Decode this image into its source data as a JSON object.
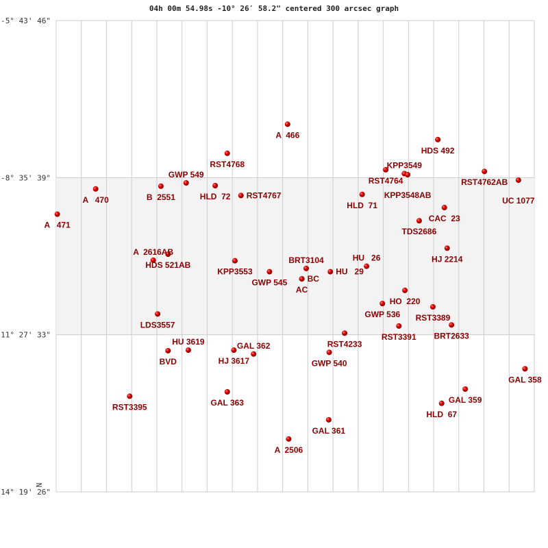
{
  "chart_data": {
    "type": "scatter",
    "title": "04h 00m 54.98s -10° 26′ 58.2\" centered 300 arcsec graph",
    "y_ticks": [
      "-5° 43' 46\"",
      "-8° 35' 39\"",
      "-11° 27' 33\"",
      "-14° 19' 26\""
    ],
    "ylim_deg": [
      -14.3239,
      -5.7294
    ],
    "x_offset_range_deg": [
      0,
      8.72
    ],
    "orientation_label": "N",
    "grid": true,
    "shaded_band_deg": [
      -11.4592,
      -8.5942
    ],
    "colors": {
      "star": "#d40000",
      "label": "#8b0000",
      "grid": "#cccccc",
      "band": "#f3f3f3"
    },
    "stars": [
      {
        "name": "A  466",
        "x": 4.22,
        "y": -7.62
      },
      {
        "name": "HDS 492",
        "x": 6.96,
        "y": -7.9
      },
      {
        "name": "RST4768",
        "x": 3.12,
        "y": -8.15
      },
      {
        "name": "RST4764",
        "x": 6.01,
        "y": -8.45
      },
      {
        "name": "KPP3549",
        "x": 6.35,
        "y": -8.52
      },
      {
        "name": "KPP3548AB",
        "x": 6.41,
        "y": -8.54
      },
      {
        "name": "RST4762AB",
        "x": 7.81,
        "y": -8.48
      },
      {
        "name": "UC 1077",
        "x": 8.43,
        "y": -8.64
      },
      {
        "name": "A   470",
        "x": 0.72,
        "y": -8.8
      },
      {
        "name": "B  2551",
        "x": 1.91,
        "y": -8.75
      },
      {
        "name": "GWP 549",
        "x": 2.37,
        "y": -8.69
      },
      {
        "name": "HLD  72",
        "x": 2.9,
        "y": -8.74
      },
      {
        "name": "RST4767",
        "x": 3.37,
        "y": -8.92
      },
      {
        "name": "HLD  71",
        "x": 5.58,
        "y": -8.9
      },
      {
        "name": "A   471",
        "x": 0.02,
        "y": -9.26
      },
      {
        "name": "CAC  23",
        "x": 7.08,
        "y": -9.14
      },
      {
        "name": "TDS2686",
        "x": 6.62,
        "y": -9.38
      },
      {
        "name": "HJ 2214",
        "x": 7.13,
        "y": -9.88
      },
      {
        "name": "HDS 521AB",
        "x": 2.04,
        "y": -9.99
      },
      {
        "name": "A  2616AB",
        "x": 1.77,
        "y": -10.1
      },
      {
        "name": "KPP3553",
        "x": 3.26,
        "y": -10.11
      },
      {
        "name": "GWP 545",
        "x": 3.89,
        "y": -10.31
      },
      {
        "name": "BRT3104",
        "x": 4.56,
        "y": -10.25
      },
      {
        "name": "AC",
        "x": 4.48,
        "y": -10.44
      },
      {
        "name": "BC",
        "x": 4.48,
        "y": -10.44
      },
      {
        "name": "HU   29",
        "x": 5.0,
        "y": -10.31
      },
      {
        "name": "HU   26",
        "x": 5.66,
        "y": -10.21
      },
      {
        "name": "HO  220",
        "x": 6.36,
        "y": -10.65
      },
      {
        "name": "GWP 536",
        "x": 5.95,
        "y": -10.89
      },
      {
        "name": "RST3389",
        "x": 6.87,
        "y": -10.95
      },
      {
        "name": "LDS3557",
        "x": 1.85,
        "y": -11.08
      },
      {
        "name": "RST3391",
        "x": 6.25,
        "y": -11.3
      },
      {
        "name": "BRT2633",
        "x": 7.21,
        "y": -11.28
      },
      {
        "name": "RST4233",
        "x": 5.26,
        "y": -11.43
      },
      {
        "name": "BVD",
        "x": 2.04,
        "y": -11.75
      },
      {
        "name": "HU 3619",
        "x": 2.41,
        "y": -11.74
      },
      {
        "name": "HJ 3617",
        "x": 3.24,
        "y": -11.74
      },
      {
        "name": "GAL 362",
        "x": 3.6,
        "y": -11.81
      },
      {
        "name": "GWP 540",
        "x": 4.98,
        "y": -11.78
      },
      {
        "name": "GAL 358",
        "x": 8.55,
        "y": -12.08
      },
      {
        "name": "GAL 359",
        "x": 7.46,
        "y": -12.45
      },
      {
        "name": "RST3395",
        "x": 1.34,
        "y": -12.58
      },
      {
        "name": "GAL 363",
        "x": 3.12,
        "y": -12.5
      },
      {
        "name": "HLD  67",
        "x": 7.03,
        "y": -12.71
      },
      {
        "name": "GAL 361",
        "x": 4.97,
        "y": -13.01
      },
      {
        "name": "A  2506",
        "x": 4.24,
        "y": -13.36
      }
    ]
  }
}
